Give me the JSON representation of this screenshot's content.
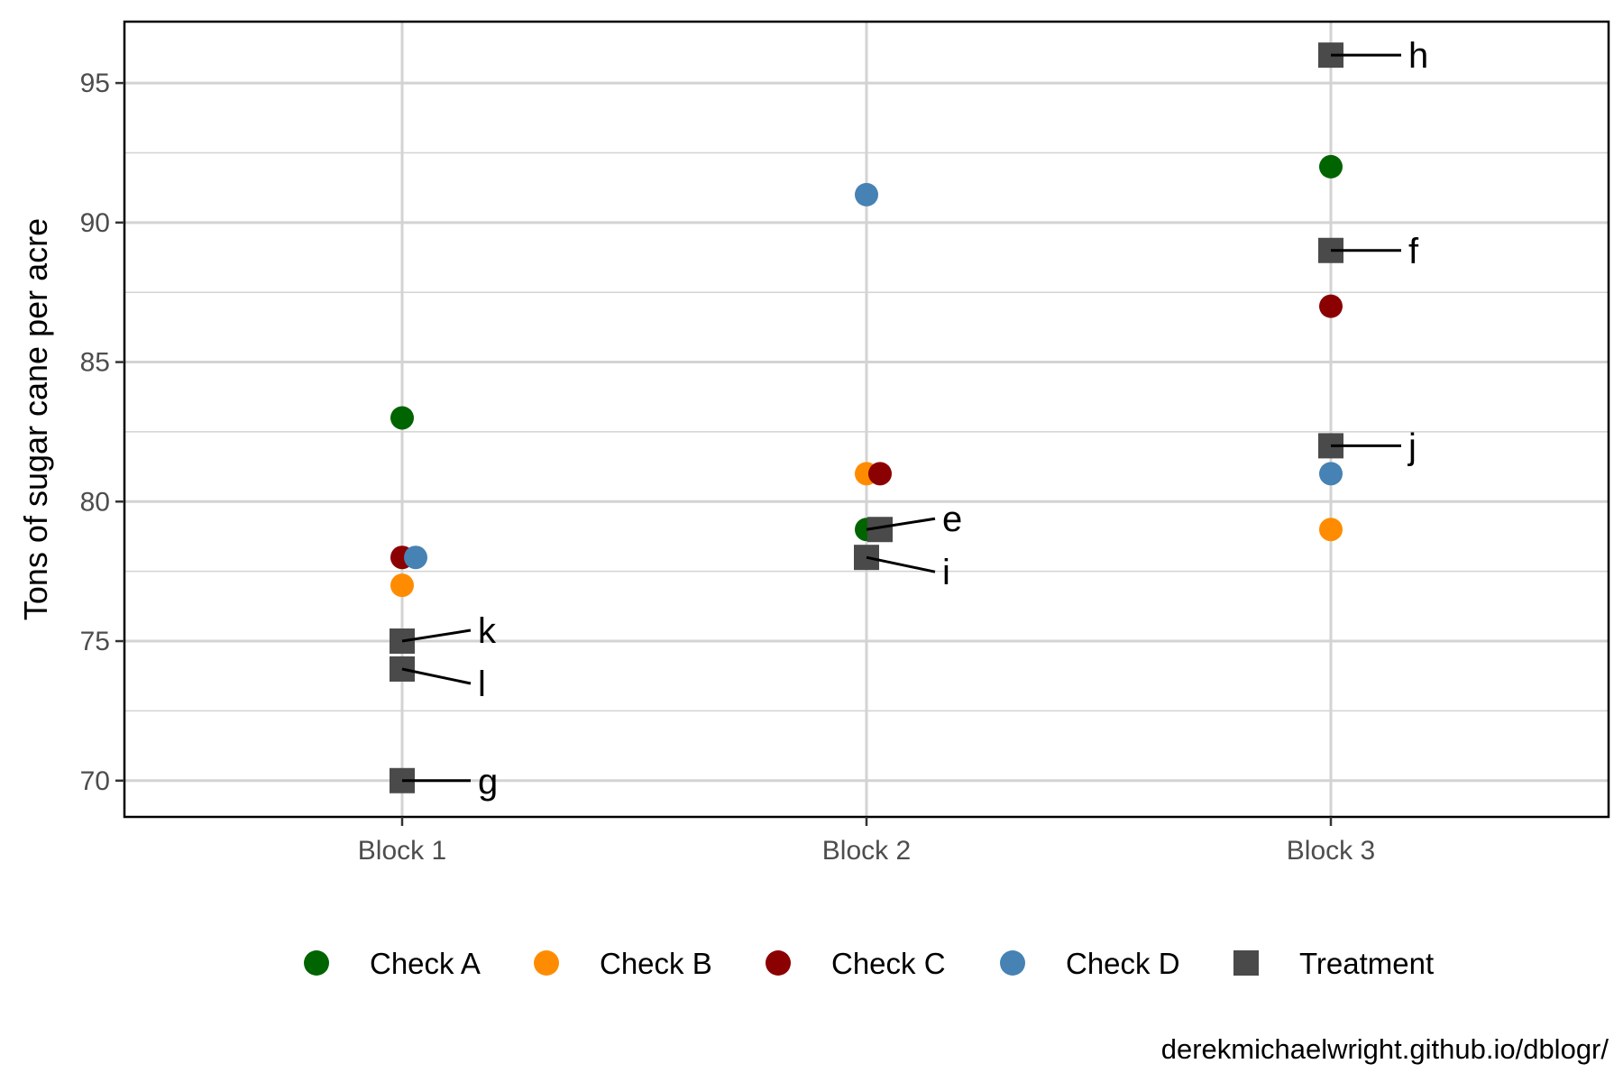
{
  "chart_data": {
    "type": "scatter",
    "title": "",
    "xlabel": "",
    "ylabel": "Tons of sugar cane per acre",
    "categories": [
      "Block 1",
      "Block 2",
      "Block 3"
    ],
    "ylim": [
      68.7,
      97.2
    ],
    "yticks": [
      70,
      75,
      80,
      85,
      90,
      95
    ],
    "grid": true,
    "legend_position": "bottom",
    "caption": "derekmichaelwright.github.io/dblogr/",
    "series": [
      {
        "name": "Check A",
        "marker": "circle",
        "color": "#006400",
        "points": [
          {
            "x": "Block 1",
            "y": 83
          },
          {
            "x": "Block 2",
            "y": 79
          },
          {
            "x": "Block 3",
            "y": 92
          }
        ]
      },
      {
        "name": "Check B",
        "marker": "circle",
        "color": "#FF8C00",
        "points": [
          {
            "x": "Block 1",
            "y": 77
          },
          {
            "x": "Block 2",
            "y": 81
          },
          {
            "x": "Block 3",
            "y": 79
          }
        ]
      },
      {
        "name": "Check C",
        "marker": "circle",
        "color": "#8B0000",
        "points": [
          {
            "x": "Block 1",
            "y": 78
          },
          {
            "x": "Block 2",
            "y": 81
          },
          {
            "x": "Block 3",
            "y": 87
          }
        ]
      },
      {
        "name": "Check D",
        "marker": "circle",
        "color": "#4682B4",
        "points": [
          {
            "x": "Block 1",
            "y": 78
          },
          {
            "x": "Block 2",
            "y": 91
          },
          {
            "x": "Block 3",
            "y": 81
          }
        ]
      },
      {
        "name": "Treatment",
        "marker": "square",
        "color": "#4A4A4A",
        "points": [
          {
            "x": "Block 1",
            "y": 75,
            "label": "k"
          },
          {
            "x": "Block 1",
            "y": 74,
            "label": "l"
          },
          {
            "x": "Block 1",
            "y": 70,
            "label": "g"
          },
          {
            "x": "Block 2",
            "y": 79,
            "label": "e"
          },
          {
            "x": "Block 2",
            "y": 78,
            "label": "i"
          },
          {
            "x": "Block 3",
            "y": 96,
            "label": "h"
          },
          {
            "x": "Block 3",
            "y": 89,
            "label": "f"
          },
          {
            "x": "Block 3",
            "y": 82,
            "label": "j"
          }
        ]
      }
    ]
  }
}
